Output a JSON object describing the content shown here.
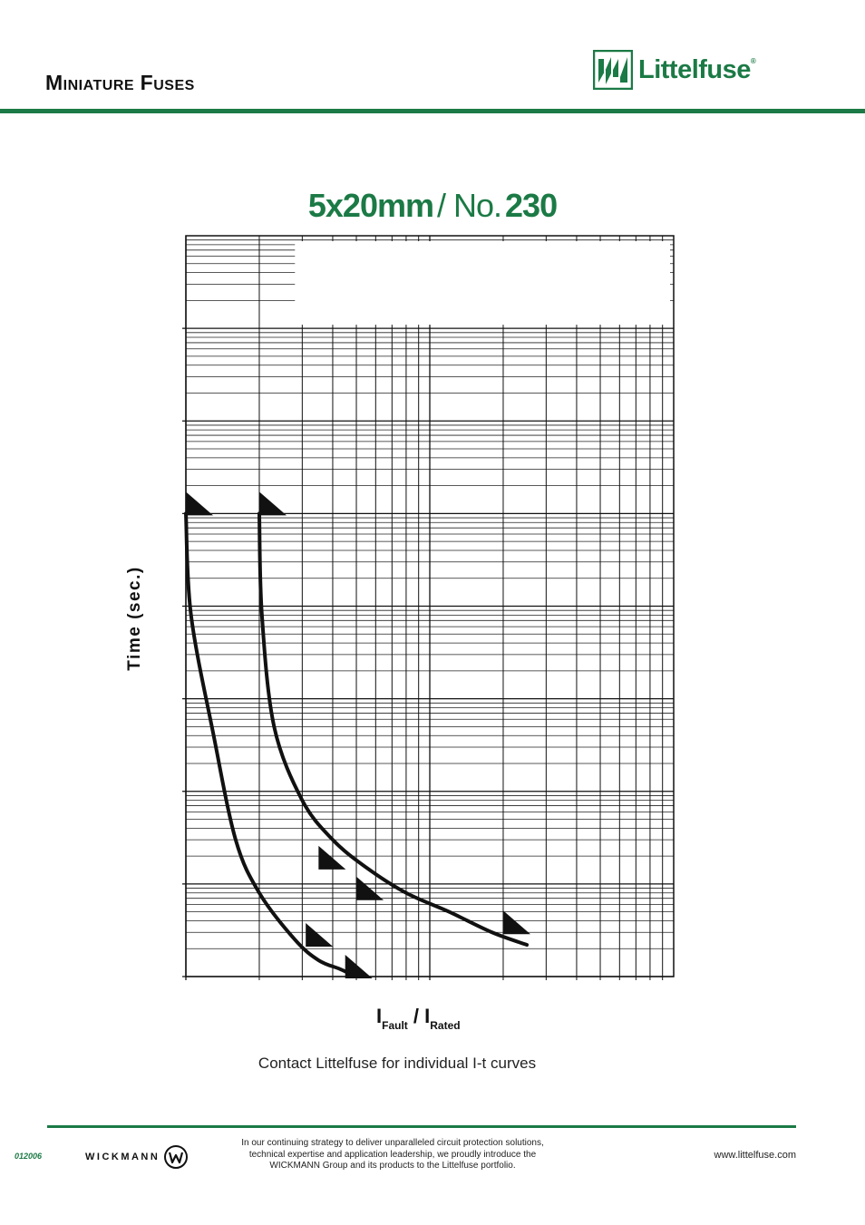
{
  "header": {
    "title_big_1": "M",
    "title_small_1": "INIATURE",
    "title_big_2": "F",
    "title_small_2": "USES",
    "logo_text": "Littelfuse",
    "logo_reg": "®",
    "brand_color": "#1b7a45"
  },
  "chart_title": {
    "part1": "5x20mm",
    "part2": "/ No.",
    "part3": "230"
  },
  "chart_data": {
    "type": "line",
    "title": "5x20mm/ No. 230",
    "xlabel": "I_Fault / I_Rated",
    "ylabel": "Time (sec.)",
    "xscale": "log",
    "yscale": "log",
    "grid": true,
    "xlim": [
      1,
      100
    ],
    "ylim": [
      0.0001,
      10000
    ],
    "series": [
      {
        "x": [
          1.0,
          1.05,
          1.3,
          1.6,
          2.0,
          2.8,
          3.5,
          4.3,
          5.0
        ],
        "y": [
          10,
          0.8,
          0.04,
          0.003,
          0.0008,
          0.00025,
          0.00015,
          0.00012,
          0.0001
        ]
      },
      {
        "x": [
          2.0,
          2.05,
          2.3,
          3.0,
          4.0,
          5.5,
          8.0,
          12.0,
          18.0,
          25.0
        ],
        "y": [
          10,
          0.8,
          0.05,
          0.008,
          0.003,
          0.0015,
          0.0008,
          0.0005,
          0.0003,
          0.00022
        ]
      }
    ],
    "arrow_markers": [
      {
        "x": 1.0,
        "y": 10
      },
      {
        "x": 2.0,
        "y": 10
      },
      {
        "x": 3.5,
        "y": 0.0015
      },
      {
        "x": 5.0,
        "y": 0.0007
      },
      {
        "x": 20.0,
        "y": 0.0003
      },
      {
        "x": 3.1,
        "y": 0.00022
      },
      {
        "x": 4.5,
        "y": 0.0001
      }
    ]
  },
  "note": "Contact Littelfuse for individual I-t curves",
  "footer": {
    "doc_code": "012006",
    "wickmann": "WICKMANN",
    "copy_line1": "In our continuing strategy to deliver unparalleled circuit protection solutions,",
    "copy_line2": "technical expertise and application leadership, we proudly introduce the",
    "copy_line3": "WICKMANN Group and its products to the Littelfuse portfolio.",
    "url": "www.littelfuse.com"
  }
}
